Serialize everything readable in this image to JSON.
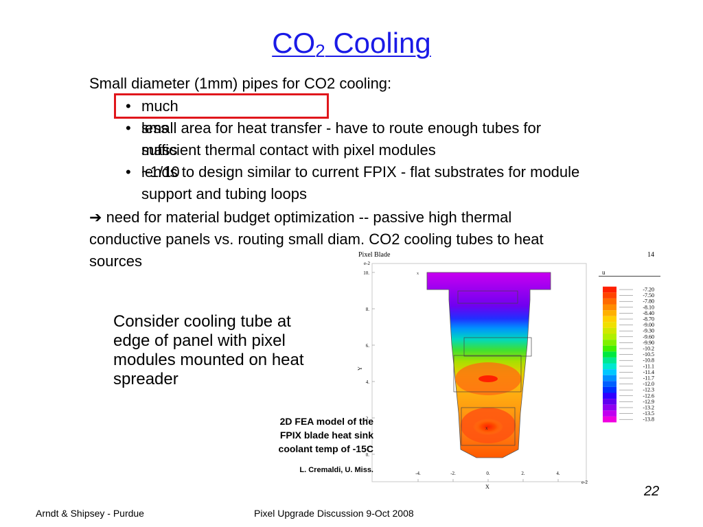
{
  "slide": {
    "title_main": "CO",
    "title_sub": "2",
    "title_rest": " Cooling",
    "intro": "Small diameter (1mm) pipes for CO2 cooling:",
    "bullet_symbol": "•",
    "bullets": [
      "much less mass ~1/10",
      "small area for heat transfer - have to route enough tubes for",
      "sufficient thermal contact with pixel modules",
      "lends to design similar to current FPIX - flat substrates for module",
      "support and tubing loops"
    ],
    "arrow_symbol": "➔",
    "conclusion_lines": [
      "need for material budget optimization -- passive high thermal",
      "conductive panels vs. routing small diam. CO2 cooling tubes to heat",
      "sources"
    ],
    "consider_lines": [
      "Consider cooling tube at",
      "edge of panel with pixel",
      "modules mounted on heat",
      "spreader"
    ],
    "caption_lines": [
      "2D FEA model of the",
      "FPIX blade heat sink",
      "coolant temp of -15C"
    ],
    "credit": "L. Cremaldi, U. Miss.",
    "footer_left": "Arndt & Shipsey - Purdue",
    "footer_center": "Pixel Upgrade Discussion 9-Oct 2008",
    "page_number": "22",
    "highlight_color": "#e0161b",
    "title_color": "#1a1ae6"
  },
  "figure": {
    "title": "Pixel Blade",
    "corner_number": "14",
    "y_exponent": "e-2",
    "x_exponent": "e-2",
    "y_axis_label": "Y",
    "x_axis_label": "X",
    "legend_header": "u",
    "y_ticks": [
      "10.",
      "8.",
      "6.",
      "4.",
      "2.",
      "0."
    ],
    "x_ticks": [
      "-4.",
      "-2.",
      "0.",
      "2.",
      "4."
    ],
    "legend_values": [
      "-7.20",
      "-7.50",
      "-7.80",
      "-8.10",
      "-8.40",
      "-8.70",
      "-9.00",
      "-9.30",
      "-9.60",
      "-9.90",
      "-10.2",
      "-10.5",
      "-10.8",
      "-11.1",
      "-11.4",
      "-11.7",
      "-12.0",
      "-12.3",
      "-12.6",
      "-12.9",
      "-13.2",
      "-13.5",
      "-13.8"
    ],
    "legend_colors": [
      "#ff2000",
      "#ff4400",
      "#ff6a00",
      "#ff8c00",
      "#ffb000",
      "#ffd000",
      "#f0e000",
      "#d0e800",
      "#b0f000",
      "#80f000",
      "#40f000",
      "#00e840",
      "#00e890",
      "#00e8d0",
      "#00c8ff",
      "#0090ff",
      "#0060ff",
      "#0030ff",
      "#3000ff",
      "#6000f0",
      "#9000f0",
      "#c000f0",
      "#f000e0"
    ],
    "node_marker": "x"
  }
}
